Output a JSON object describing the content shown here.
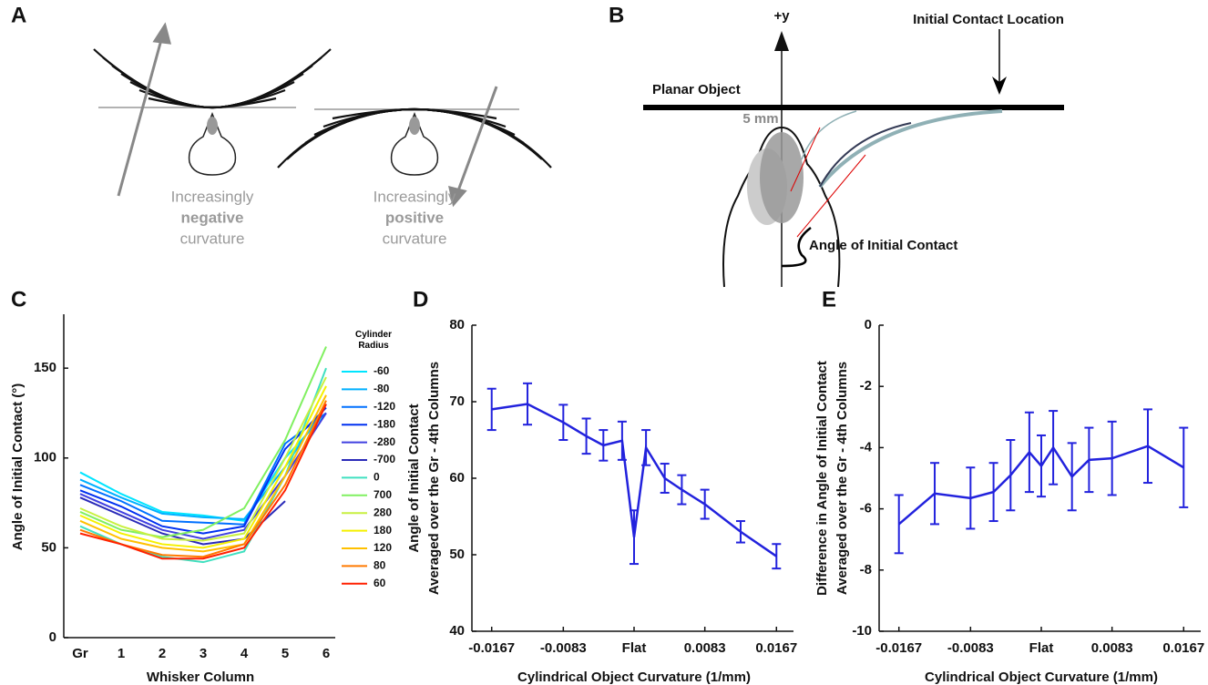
{
  "diagrams": {
    "labels": [
      "A",
      "B",
      "C",
      "D",
      "E"
    ],
    "a_left": [
      "Increasingly",
      "negative",
      "curvature"
    ],
    "a_right": [
      "Increasingly",
      "positive",
      "curvature"
    ],
    "b": {
      "y_axis": "+y",
      "contact_location": "Initial Contact Location",
      "object": "Planar Object",
      "distance": "5 mm",
      "angle": "Angle of Initial Contact"
    }
  },
  "chart_data": [
    {
      "type": "line",
      "xlabel": "Whisker Column",
      "ylabel": [
        "Angle of Initial Contact (°)"
      ],
      "categories": [
        "Gr",
        "1",
        "2",
        "3",
        "4",
        "5",
        "6"
      ],
      "ylim": [
        0,
        180
      ],
      "yticks": [
        0,
        50,
        100,
        150
      ],
      "legend_title": "Cylinder Radius",
      "series": [
        {
          "name": "-60",
          "color": "#00e5ff",
          "values": [
            92,
            80,
            70,
            68,
            65,
            100,
            125
          ]
        },
        {
          "name": "-80",
          "color": "#00b0ff",
          "values": [
            88,
            78,
            69,
            67,
            66,
            95,
            130
          ]
        },
        {
          "name": "-120",
          "color": "#0070ff",
          "values": [
            85,
            76,
            65,
            64,
            63,
            108,
            125
          ]
        },
        {
          "name": "-180",
          "color": "#0030f0",
          "values": [
            82,
            73,
            62,
            58,
            62,
            105,
            128
          ]
        },
        {
          "name": "-280",
          "color": "#4040e0",
          "values": [
            80,
            70,
            60,
            55,
            60,
            90,
            125
          ]
        },
        {
          "name": "-700",
          "color": "#2a2ab8",
          "values": [
            78,
            68,
            58,
            52,
            55,
            76,
            null
          ]
        },
        {
          "name": "0",
          "color": "#40e0c0",
          "values": [
            62,
            52,
            45,
            42,
            48,
            90,
            150
          ]
        },
        {
          "name": "700",
          "color": "#80f060",
          "values": [
            70,
            60,
            56,
            60,
            72,
            110,
            162
          ]
        },
        {
          "name": "280",
          "color": "#c8f040",
          "values": [
            72,
            62,
            55,
            54,
            58,
            100,
            145
          ]
        },
        {
          "name": "180",
          "color": "#f5f000",
          "values": [
            68,
            58,
            52,
            50,
            55,
            95,
            140
          ]
        },
        {
          "name": "120",
          "color": "#ffc000",
          "values": [
            65,
            55,
            50,
            48,
            52,
            90,
            135
          ]
        },
        {
          "name": "80",
          "color": "#ff7a00",
          "values": [
            60,
            52,
            46,
            45,
            52,
            85,
            132
          ]
        },
        {
          "name": "60",
          "color": "#ff2000",
          "values": [
            58,
            52,
            44,
            44,
            50,
            82,
            130
          ]
        }
      ]
    },
    {
      "type": "line",
      "xlabel": "Cylindrical Object Curvature (1/mm)",
      "ylabel": [
        "Angle of Initial Contact",
        "Averaged over the Gr - 4th Columns"
      ],
      "x": [
        -0.0167,
        -0.0125,
        -0.0083,
        -0.0056,
        -0.0036,
        -0.0014,
        0,
        0.0014,
        0.0036,
        0.0056,
        0.0083,
        0.0125,
        0.0167
      ],
      "values": [
        69,
        69.7,
        67.3,
        65.5,
        64.3,
        64.9,
        52.3,
        64,
        60,
        58.5,
        56.6,
        53,
        49.8
      ],
      "errors": [
        2.7,
        2.7,
        2.3,
        2.3,
        2,
        2.5,
        3.5,
        2.3,
        1.9,
        1.9,
        1.9,
        1.4,
        1.6
      ],
      "color": "#2222dd",
      "xlim": [
        -0.0187,
        0.0187
      ],
      "ylim": [
        40,
        80
      ],
      "xticks": [
        -0.0167,
        -0.0083,
        {
          "value": 0,
          "label": "Flat"
        },
        0.0083,
        0.0167
      ],
      "yticks": [
        40,
        50,
        60,
        70,
        80
      ]
    },
    {
      "type": "line",
      "xlabel": "Cylindrical Object Curvature (1/mm)",
      "ylabel": [
        "Difference in Angle of Initial Contact",
        "Averaged over the Gr - 4th Columns"
      ],
      "x": [
        -0.0167,
        -0.0125,
        -0.0083,
        -0.0056,
        -0.0036,
        -0.0014,
        0,
        0.0014,
        0.0036,
        0.0056,
        0.0083,
        0.0125,
        0.0167
      ],
      "values": [
        -6.5,
        -5.5,
        -5.65,
        -5.45,
        -4.9,
        -4.15,
        -4.6,
        -4,
        -4.95,
        -4.4,
        -4.35,
        -3.95,
        -4.65
      ],
      "errors": [
        0.95,
        1,
        1,
        0.95,
        1.15,
        1.3,
        1,
        1.2,
        1.1,
        1.05,
        1.2,
        1.2,
        1.3
      ],
      "color": "#2222dd",
      "xlim": [
        -0.0187,
        0.0187
      ],
      "ylim": [
        -10,
        0
      ],
      "xticks": [
        -0.0167,
        -0.0083,
        {
          "value": 0,
          "label": "Flat"
        },
        0.0083,
        0.0167
      ],
      "yticks": [
        -10,
        -8,
        -6,
        -4,
        -2,
        0
      ]
    }
  ]
}
